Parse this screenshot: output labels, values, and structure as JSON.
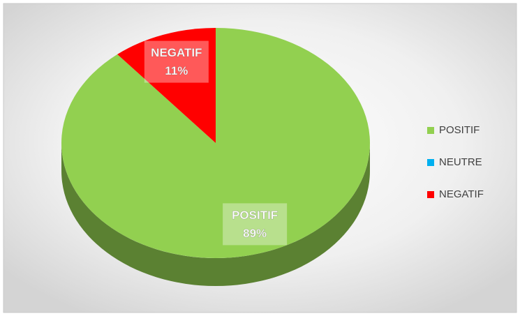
{
  "chart_data": {
    "type": "pie",
    "categories": [
      "POSITIF",
      "NEUTRE",
      "NEGATIF"
    ],
    "values": [
      89,
      0,
      11
    ],
    "value_labels": [
      "89%",
      null,
      "11%"
    ],
    "colors": [
      "#92d050",
      "#00b0f0",
      "#ff0000"
    ],
    "legend": "right"
  }
}
